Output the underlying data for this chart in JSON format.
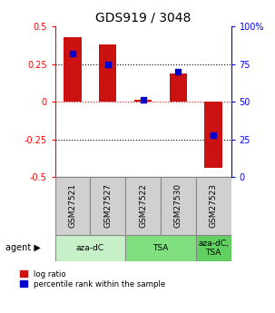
{
  "title": "GDS919 / 3048",
  "samples": [
    "GSM27521",
    "GSM27527",
    "GSM27522",
    "GSM27530",
    "GSM27523"
  ],
  "log_ratios": [
    0.43,
    0.38,
    0.01,
    0.19,
    -0.44
  ],
  "percentile_ranks": [
    82,
    75,
    51,
    70,
    28
  ],
  "agent_groups": [
    {
      "label": "aza-dC",
      "color": "#c8f0c8",
      "span": [
        0,
        2
      ]
    },
    {
      "label": "TSA",
      "color": "#80e080",
      "span": [
        2,
        4
      ]
    },
    {
      "label": "aza-dC,\nTSA",
      "color": "#60d060",
      "span": [
        4,
        5
      ]
    }
  ],
  "ylim": [
    -0.5,
    0.5
  ],
  "bar_color": "#cc1111",
  "dot_color": "#0000cc",
  "background_color": "#ffffff",
  "title_fontsize": 10,
  "bar_width": 0.5,
  "sample_box_color": "#d0d0d0",
  "agent_label_color": "#404040"
}
